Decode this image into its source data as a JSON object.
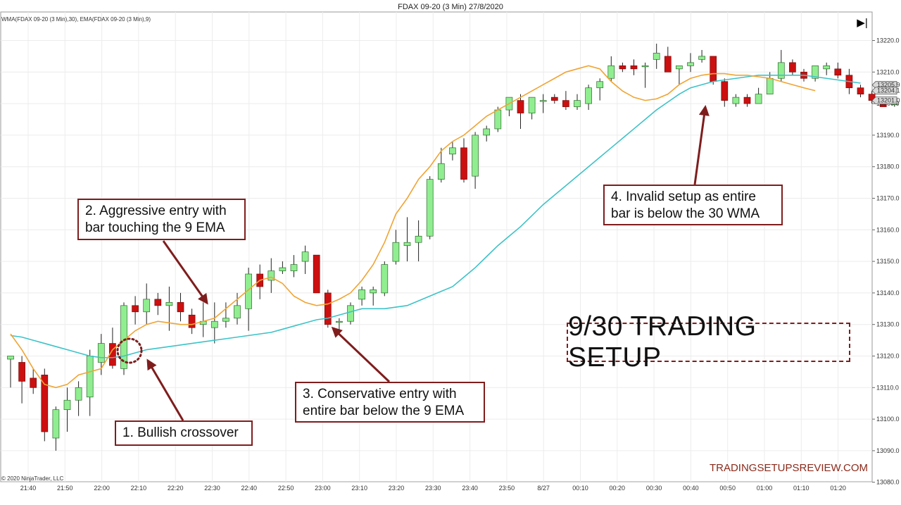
{
  "chart_data": {
    "type": "candlestick",
    "title": "FDAX 09-20 (3 Min)  27/8/2020",
    "indicator_legend": "WMA(FDAX 09-20 (3 Min),30), EMA(FDAX 09-20 (3 Min),9)",
    "copyright": "© 2020 NinjaTrader, LLC",
    "ylim": [
      13080,
      13224
    ],
    "y_ticks": [
      13080,
      13090,
      13100,
      13110,
      13120,
      13130,
      13140,
      13150,
      13160,
      13170,
      13180,
      13190,
      13200,
      13210,
      13220
    ],
    "y_tick_labels": [
      "13080.0",
      "13090.0",
      "13100.0",
      "13110.0",
      "13120.0",
      "13130.0",
      "13140.0",
      "13150.0",
      "13160.0",
      "13170.0",
      "13180.0",
      "13190.0",
      "13200.0",
      "13210.0",
      "13220.0"
    ],
    "x_tick_labels": [
      "21:40",
      "21:50",
      "22:00",
      "22:10",
      "22:20",
      "22:30",
      "22:40",
      "22:50",
      "23:00",
      "23:10",
      "23:20",
      "23:30",
      "23:40",
      "23:50",
      "8/27",
      "00:10",
      "00:20",
      "00:30",
      "00:40",
      "00:50",
      "01:00",
      "01:10",
      "01:20"
    ],
    "price_markers": [
      {
        "value": 13205.9,
        "label": "13205.9"
      },
      {
        "value": 13204.1,
        "label": "13204.1"
      },
      {
        "value": 13201.0,
        "label": "13201.0"
      }
    ],
    "series": [
      {
        "name": "WMA 30",
        "color": "#3cc3c8",
        "values": [
          13126.5,
          13126,
          13125,
          13124,
          13123,
          13122,
          13121,
          13120,
          13119.5,
          13119.5,
          13120,
          13121,
          13122,
          13122.5,
          13123,
          13123.5,
          13124,
          13124.5,
          13125,
          13125.5,
          13126,
          13126.5,
          13127,
          13127.5,
          13128.5,
          13129.5,
          13130.5,
          13131.5,
          13132,
          13133,
          13134,
          13135,
          13135,
          13135,
          13135.5,
          13136,
          13137.5,
          13139,
          13140.5,
          13142,
          13145,
          13148,
          13151.5,
          13155,
          13158,
          13161,
          13164.5,
          13168,
          13171,
          13174,
          13177,
          13180,
          13183,
          13186,
          13189,
          13192,
          13195,
          13198,
          13200.5,
          13203,
          13205,
          13206,
          13207,
          13207.5,
          13208,
          13208.5,
          13209,
          13209,
          13209,
          13209,
          13209,
          13208.5,
          13208,
          13207.5,
          13207,
          13206.5
        ]
      },
      {
        "name": "EMA 9",
        "color": "#f0a432",
        "values": [
          13127,
          13122,
          13116,
          13111,
          13110,
          13111,
          13114,
          13115,
          13116,
          13122,
          13125,
          13128,
          13130,
          13131,
          13130.5,
          13130,
          13130,
          13131,
          13132,
          13135,
          13138,
          13141,
          13144,
          13145,
          13143,
          13139,
          13137,
          13136,
          13136.5,
          13138,
          13140,
          13144,
          13149,
          13156,
          13165,
          13170,
          13176,
          13180,
          13185,
          13188,
          13190,
          13193,
          13196,
          13198,
          13200,
          13202,
          13204,
          13206,
          13208,
          13210,
          13211,
          13212,
          13211,
          13207,
          13204,
          13202,
          13201,
          13201.5,
          13203,
          13206,
          13208,
          13209,
          13209.5,
          13209.5,
          13209,
          13209,
          13208.5,
          13208,
          13207,
          13206,
          13205,
          13204.1
        ]
      }
    ],
    "candles": [
      {
        "t": 1,
        "o": 13119,
        "h": 13120,
        "l": 13110,
        "c": 13120
      },
      {
        "t": 2,
        "o": 13118,
        "h": 13120,
        "l": 13105,
        "c": 13112
      },
      {
        "t": 3,
        "o": 13113,
        "h": 13116,
        "l": 13108,
        "c": 13110
      },
      {
        "t": 4,
        "o": 13114,
        "h": 13116,
        "l": 13093,
        "c": 13096
      },
      {
        "t": 5,
        "o": 13094,
        "h": 13104,
        "l": 13090,
        "c": 13103
      },
      {
        "t": 6,
        "o": 13103,
        "h": 13110,
        "l": 13096,
        "c": 13106
      },
      {
        "t": 7,
        "o": 13106,
        "h": 13112,
        "l": 13101,
        "c": 13110
      },
      {
        "t": 8,
        "o": 13107,
        "h": 13122,
        "l": 13101,
        "c": 13120
      },
      {
        "t": 9,
        "o": 13118,
        "h": 13127,
        "l": 13114,
        "c": 13124
      },
      {
        "t": 10,
        "o": 13124,
        "h": 13129,
        "l": 13116,
        "c": 13117
      },
      {
        "t": 11,
        "o": 13116,
        "h": 13137,
        "l": 13114,
        "c": 13136
      },
      {
        "t": 12,
        "o": 13136,
        "h": 13139,
        "l": 13130,
        "c": 13134
      },
      {
        "t": 13,
        "o": 13134,
        "h": 13143,
        "l": 13130,
        "c": 13138
      },
      {
        "t": 14,
        "o": 13138,
        "h": 13140,
        "l": 13133,
        "c": 13136
      },
      {
        "t": 15,
        "o": 13136,
        "h": 13142,
        "l": 13128,
        "c": 13137
      },
      {
        "t": 16,
        "o": 13137,
        "h": 13140,
        "l": 13131,
        "c": 13134
      },
      {
        "t": 17,
        "o": 13133,
        "h": 13135,
        "l": 13127,
        "c": 13129
      },
      {
        "t": 18,
        "o": 13130,
        "h": 13137,
        "l": 13126,
        "c": 13131
      },
      {
        "t": 19,
        "o": 13129,
        "h": 13137,
        "l": 13124,
        "c": 13131
      },
      {
        "t": 20,
        "o": 13131,
        "h": 13137,
        "l": 13129,
        "c": 13132
      },
      {
        "t": 21,
        "o": 13132,
        "h": 13140,
        "l": 13130,
        "c": 13136
      },
      {
        "t": 22,
        "o": 13135,
        "h": 13148,
        "l": 13128,
        "c": 13146
      },
      {
        "t": 23,
        "o": 13146,
        "h": 13149,
        "l": 13138,
        "c": 13142
      },
      {
        "t": 24,
        "o": 13144,
        "h": 13151,
        "l": 13140,
        "c": 13147
      },
      {
        "t": 25,
        "o": 13147,
        "h": 13150,
        "l": 13146,
        "c": 13148
      },
      {
        "t": 26,
        "o": 13147,
        "h": 13152,
        "l": 13145,
        "c": 13149
      },
      {
        "t": 27,
        "o": 13150,
        "h": 13155,
        "l": 13146,
        "c": 13153
      },
      {
        "t": 28,
        "o": 13152,
        "h": 13152,
        "l": 13140,
        "c": 13140
      },
      {
        "t": 29,
        "o": 13140,
        "h": 13141,
        "l": 13129,
        "c": 13130
      },
      {
        "t": 30,
        "o": 13131,
        "h": 13132,
        "l": 13128,
        "c": 13131
      },
      {
        "t": 31,
        "o": 13131,
        "h": 13137,
        "l": 13130,
        "c": 13136
      },
      {
        "t": 32,
        "o": 13138,
        "h": 13142,
        "l": 13136,
        "c": 13141
      },
      {
        "t": 33,
        "o": 13140,
        "h": 13142,
        "l": 13136,
        "c": 13141
      },
      {
        "t": 34,
        "o": 13140,
        "h": 13150,
        "l": 13139,
        "c": 13149
      },
      {
        "t": 35,
        "o": 13150,
        "h": 13160,
        "l": 13149,
        "c": 13156
      },
      {
        "t": 36,
        "o": 13155,
        "h": 13164,
        "l": 13150,
        "c": 13156
      },
      {
        "t": 37,
        "o": 13156,
        "h": 13163,
        "l": 13150,
        "c": 13158
      },
      {
        "t": 38,
        "o": 13158,
        "h": 13177,
        "l": 13157,
        "c": 13176
      },
      {
        "t": 39,
        "o": 13176,
        "h": 13186,
        "l": 13175,
        "c": 13181
      },
      {
        "t": 40,
        "o": 13184,
        "h": 13188,
        "l": 13182,
        "c": 13186
      },
      {
        "t": 41,
        "o": 13186,
        "h": 13189,
        "l": 13175,
        "c": 13176
      },
      {
        "t": 42,
        "o": 13177,
        "h": 13191,
        "l": 13173,
        "c": 13190
      },
      {
        "t": 43,
        "o": 13190,
        "h": 13193,
        "l": 13188,
        "c": 13192
      },
      {
        "t": 44,
        "o": 13192,
        "h": 13199,
        "l": 13191,
        "c": 13198
      },
      {
        "t": 45,
        "o": 13198,
        "h": 13202,
        "l": 13196,
        "c": 13202
      },
      {
        "t": 46,
        "o": 13201,
        "h": 13203,
        "l": 13192,
        "c": 13197
      },
      {
        "t": 47,
        "o": 13197,
        "h": 13202,
        "l": 13195,
        "c": 13202
      },
      {
        "t": 48,
        "o": 13201,
        "h": 13203,
        "l": 13197,
        "c": 13201
      },
      {
        "t": 49,
        "o": 13202,
        "h": 13203,
        "l": 13200,
        "c": 13201
      },
      {
        "t": 50,
        "o": 13201,
        "h": 13204,
        "l": 13198,
        "c": 13199
      },
      {
        "t": 51,
        "o": 13199,
        "h": 13203,
        "l": 13198,
        "c": 13201
      },
      {
        "t": 52,
        "o": 13200,
        "h": 13206,
        "l": 13198,
        "c": 13205
      },
      {
        "t": 53,
        "o": 13205,
        "h": 13208,
        "l": 13201,
        "c": 13207
      },
      {
        "t": 54,
        "o": 13208,
        "h": 13215,
        "l": 13207,
        "c": 13212
      },
      {
        "t": 55,
        "o": 13212,
        "h": 13213,
        "l": 13210,
        "c": 13211
      },
      {
        "t": 56,
        "o": 13212,
        "h": 13214,
        "l": 13209,
        "c": 13211
      },
      {
        "t": 57,
        "o": 13212,
        "h": 13213,
        "l": 13205,
        "c": 13212
      },
      {
        "t": 58,
        "o": 13214,
        "h": 13219,
        "l": 13211,
        "c": 13216
      },
      {
        "t": 59,
        "o": 13215,
        "h": 13218,
        "l": 13210,
        "c": 13210
      },
      {
        "t": 60,
        "o": 13211,
        "h": 13212,
        "l": 13206,
        "c": 13212
      },
      {
        "t": 61,
        "o": 13212,
        "h": 13216,
        "l": 13210,
        "c": 13213
      },
      {
        "t": 62,
        "o": 13214,
        "h": 13217,
        "l": 13213,
        "c": 13215
      },
      {
        "t": 63,
        "o": 13215,
        "h": 13215,
        "l": 13206,
        "c": 13207
      },
      {
        "t": 64,
        "o": 13207,
        "h": 13208,
        "l": 13199,
        "c": 13201
      },
      {
        "t": 65,
        "o": 13200,
        "h": 13203,
        "l": 13199,
        "c": 13202
      },
      {
        "t": 66,
        "o": 13202,
        "h": 13203,
        "l": 13199,
        "c": 13200
      },
      {
        "t": 67,
        "o": 13200,
        "h": 13205,
        "l": 13200,
        "c": 13203
      },
      {
        "t": 68,
        "o": 13203,
        "h": 13210,
        "l": 13203,
        "c": 13208
      },
      {
        "t": 69,
        "o": 13208,
        "h": 13217,
        "l": 13207,
        "c": 13213
      },
      {
        "t": 70,
        "o": 13213,
        "h": 13214,
        "l": 13209,
        "c": 13210
      },
      {
        "t": 71,
        "o": 13210,
        "h": 13211,
        "l": 13207,
        "c": 13208
      },
      {
        "t": 72,
        "o": 13208,
        "h": 13212,
        "l": 13207,
        "c": 13212
      },
      {
        "t": 73,
        "o": 13211,
        "h": 13213,
        "l": 13209,
        "c": 13212
      },
      {
        "t": 74,
        "o": 13211,
        "h": 13213,
        "l": 13208,
        "c": 13209
      },
      {
        "t": 75,
        "o": 13209,
        "h": 13211,
        "l": 13203,
        "c": 13205
      },
      {
        "t": 76,
        "o": 13205,
        "h": 13206,
        "l": 13202,
        "c": 13203
      },
      {
        "t": 77,
        "o": 13203,
        "h": 13204,
        "l": 13200,
        "c": 13201
      },
      {
        "t": 78,
        "o": 13201,
        "h": 13202,
        "l": 13199,
        "c": 13199
      },
      {
        "t": 79,
        "o": 13200,
        "h": 13201,
        "l": 13199,
        "c": 13200
      }
    ],
    "colors": {
      "up": "#90ee90",
      "down": "#cc1010",
      "annotation": "#7f1d1d"
    }
  },
  "annotations": [
    {
      "text": "1. Bullish crossover"
    },
    {
      "text": "2. Aggressive entry with\nbar touching the 9 EMA"
    },
    {
      "text": "3. Conservative entry with\nentire bar below the 9 EMA"
    },
    {
      "text": "4. Invalid setup as entire\nbar is below the 30 WMA"
    }
  ],
  "setup_title": "9/30 TRADING SETUP",
  "watermark": "TRADINGSETUPSREVIEW.COM",
  "toolbar": {
    "play_icon": "▶|"
  }
}
